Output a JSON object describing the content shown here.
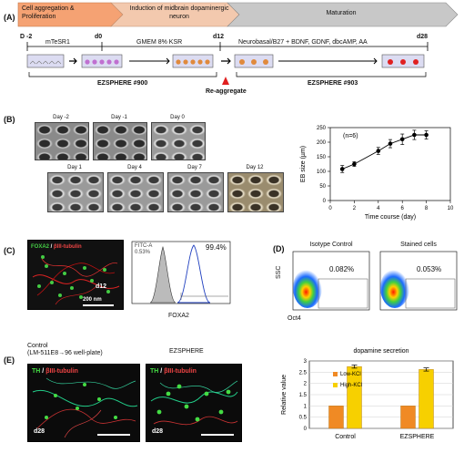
{
  "panels": {
    "a": "(A)",
    "b": "(B)",
    "c": "(C)",
    "d": "(D)",
    "e": "(E)"
  },
  "timeline": {
    "stages": [
      "Cell aggregation & Proliferation",
      "Induction of midbrain dopaminergic neuron",
      "Maturation"
    ],
    "stage_colors": [
      "#f5a273",
      "#f3c9ae",
      "#c8c8c8"
    ],
    "days": [
      "D -2",
      "d0",
      "d12",
      "d28"
    ],
    "media": [
      "mTeSR1",
      "GMEM 8% KSR",
      "Neurobasal/B27 + BDNF, GDNF, dbcAMP, AA"
    ],
    "re_aggregate": "Re-aggregate",
    "plates": [
      "EZSPHERE #900",
      "EZSPHERE #903"
    ]
  },
  "panel_b": {
    "day_labels": [
      "Day -2",
      "Day -1",
      "Day 0",
      "Day 1",
      "Day 4",
      "Day 7",
      "Day 12"
    ]
  },
  "chart_b": {
    "type": "line",
    "annotation": "(n=6)",
    "xlabel": "Time course (day)",
    "ylabel": "EB size (µm)",
    "xlim": [
      0,
      10
    ],
    "ylim": [
      0,
      250
    ],
    "xticks": [
      0,
      2,
      4,
      6,
      8,
      10
    ],
    "yticks": [
      0,
      50,
      100,
      150,
      200,
      250
    ],
    "x": [
      1,
      2,
      4,
      5,
      6,
      7,
      8
    ],
    "y": [
      108,
      125,
      170,
      195,
      210,
      225,
      225
    ],
    "err": [
      12,
      8,
      12,
      14,
      18,
      16,
      14
    ]
  },
  "panel_c": {
    "stain_a": "FOXA2",
    "stain_b": "βIII-tubulin",
    "day": "d12",
    "scale": "200 nm",
    "hist_percent": "99.4%",
    "hist_inset_1": "FITC-A",
    "hist_inset_2": "0.53%",
    "hist_xlabel": "FOXA2"
  },
  "panel_d": {
    "titles": [
      "Isotype Control",
      "Stained cells"
    ],
    "percents": [
      "0.082%",
      "0.053%"
    ],
    "ylabel": "SSC",
    "xlabel": "Oct4"
  },
  "panel_e": {
    "control_title": "Control",
    "control_sub": "(LM-511E8→96 well-plate)",
    "ez_title": "EZSPHERE",
    "stain_a": "TH",
    "stain_b": "βIII-tubulin",
    "day": "d28"
  },
  "chart_e": {
    "type": "bar",
    "title": "dopamine secretion",
    "ylabel": "Relative value",
    "categories": [
      "Control",
      "EZSPHERE"
    ],
    "ylim": [
      0,
      3
    ],
    "yticks": [
      0,
      0.5,
      1,
      1.5,
      2,
      2.5,
      3
    ],
    "series": [
      {
        "name": "Low-KCl",
        "values": [
          1.0,
          1.0
        ],
        "color": "#f08a24"
      },
      {
        "name": "High-KCl",
        "values": [
          2.75,
          2.62
        ],
        "err": [
          0.07,
          0.07
        ],
        "color": "#f7d000"
      }
    ]
  }
}
